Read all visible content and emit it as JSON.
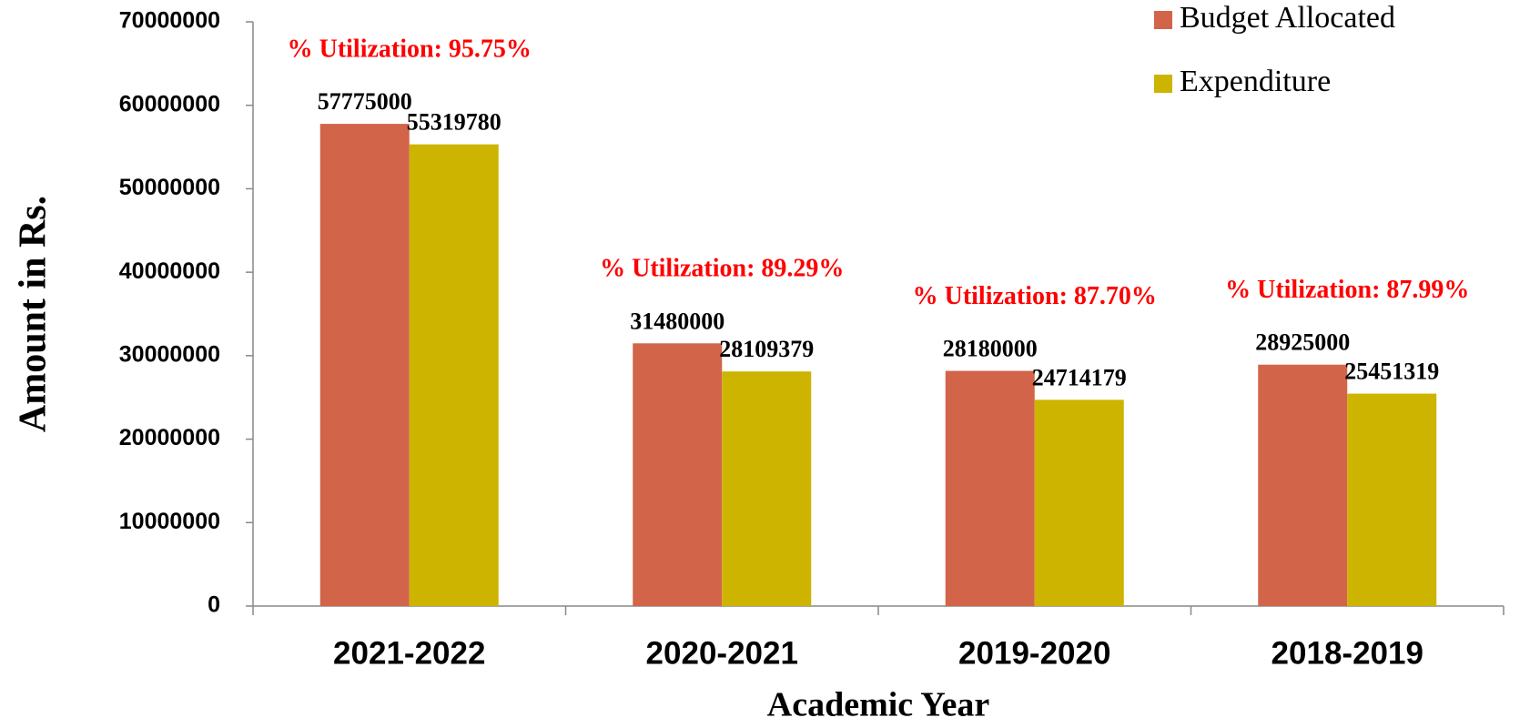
{
  "chart_data": {
    "type": "bar",
    "x_label": "Academic Year",
    "y_label": "Amount in Rs.",
    "categories": [
      "2021-2022",
      "2020-2021",
      "2019-2020",
      "2018-2019"
    ],
    "series": [
      {
        "name": "Budget Allocated",
        "color": "#d2644a",
        "values": [
          57775000,
          31480000,
          28180000,
          28925000
        ]
      },
      {
        "name": "Expenditure",
        "color": "#cdb400",
        "values": [
          55319780,
          28109379,
          24714179,
          25451319
        ]
      }
    ],
    "annotations": [
      "% Utilization: 95.75%",
      "% Utilization: 89.29%",
      "% Utilization: 87.70%",
      "% Utilization: 87.99%"
    ],
    "ylim": [
      0,
      70000000
    ],
    "yticks": [
      0,
      10000000,
      20000000,
      30000000,
      40000000,
      50000000,
      60000000,
      70000000
    ],
    "legend": "upper right"
  }
}
